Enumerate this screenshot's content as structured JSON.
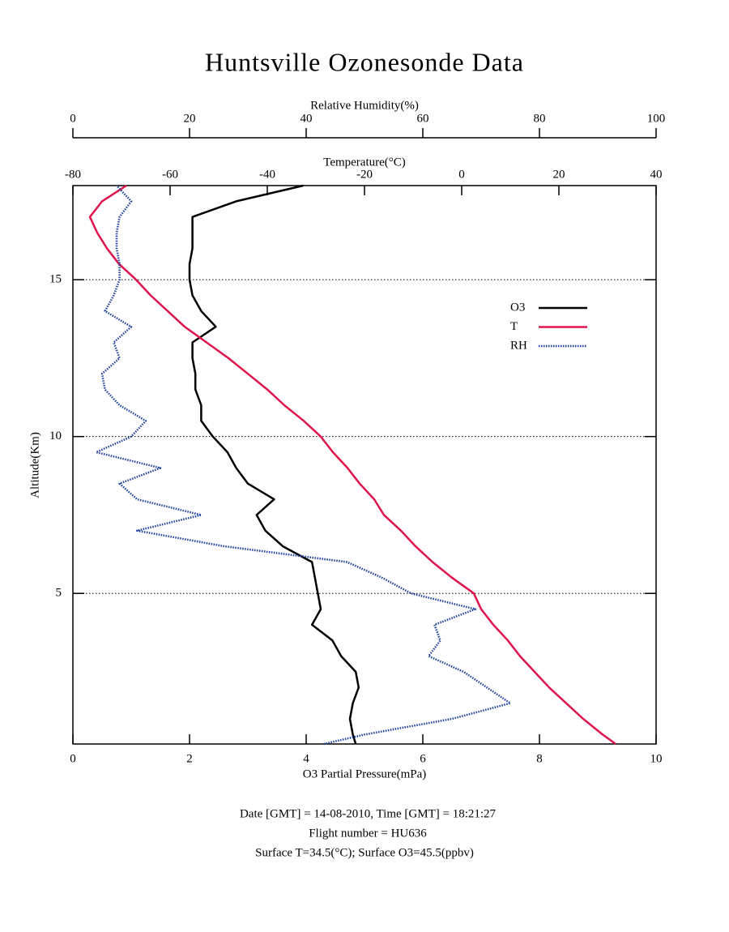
{
  "chart_data": {
    "type": "line",
    "title": "Huntsville Ozonesonde Data",
    "ylabel": "Altitude(Km)",
    "ylim": [
      0.2,
      18
    ],
    "yticks": [
      5,
      10,
      15
    ],
    "grid": true,
    "xlabel": "O3 Partial Pressure(mPa)",
    "xlim": [
      0,
      10
    ],
    "xticks": [
      0,
      2,
      4,
      6,
      8,
      10
    ],
    "x2label": "Temperature(°C)",
    "x2lim": [
      -80,
      40
    ],
    "x2ticks": [
      -80,
      -60,
      -40,
      -20,
      0,
      20,
      40
    ],
    "x3label": "Relative Humidity(%)",
    "x3lim": [
      0,
      100
    ],
    "x3ticks": [
      0,
      20,
      40,
      60,
      80,
      100
    ],
    "legend": "right",
    "altitude": [
      0.2,
      0.5,
      1,
      1.5,
      2,
      2.5,
      3,
      3.5,
      4,
      4.5,
      5,
      5.5,
      6,
      6.5,
      7,
      7.5,
      8,
      8.5,
      9,
      9.5,
      10,
      10.5,
      11,
      11.5,
      12,
      12.5,
      13,
      13.5,
      14,
      14.5,
      15,
      15.5,
      16,
      16.5,
      17,
      17.5,
      18
    ],
    "series": [
      {
        "name": "O3",
        "color": "#000000",
        "axis": "x",
        "dash": "solid",
        "values": [
          4.85,
          4.8,
          4.75,
          4.8,
          4.9,
          4.85,
          4.6,
          4.45,
          4.1,
          4.25,
          4.2,
          4.15,
          4.1,
          3.6,
          3.3,
          3.15,
          3.45,
          3.0,
          2.8,
          2.65,
          2.4,
          2.2,
          2.2,
          2.1,
          2.1,
          2.05,
          2.05,
          2.45,
          2.2,
          2.05,
          2.0,
          2.0,
          2.05,
          2.05,
          2.05,
          2.8,
          3.95
        ]
      },
      {
        "name": "T",
        "color": "#e0144c",
        "axis": "x2",
        "dash": "solid",
        "values": [
          31.7,
          29,
          25,
          21.5,
          18,
          15,
          12,
          9.5,
          6.5,
          4,
          2.5,
          -2,
          -6,
          -9.5,
          -12.5,
          -16,
          -18,
          -21,
          -23.5,
          -26.5,
          -29,
          -32.5,
          -36.5,
          -40,
          -44,
          -48,
          -52.5,
          -57,
          -60.5,
          -64,
          -67,
          -70.5,
          -73,
          -75,
          -76.5,
          -74,
          -69
        ]
      },
      {
        "name": "RH",
        "color": "#1a3fa0",
        "axis": "x3",
        "dash": "dotted",
        "values": [
          43,
          50,
          65,
          75,
          71,
          67,
          61,
          63,
          62,
          69,
          58,
          53,
          47,
          26,
          11,
          22,
          11,
          8,
          15,
          4,
          10,
          12.5,
          8,
          5.5,
          5,
          8,
          7,
          10,
          5.5,
          7,
          8,
          8,
          7.5,
          7.5,
          8,
          10,
          7.5
        ]
      }
    ],
    "footer": [
      "Date [GMT] = 14-08-2010,  Time [GMT] = 18:21:27",
      "Flight number = HU636",
      "Surface T=34.5(°C); Surface O3=45.5(ppbv)"
    ]
  }
}
